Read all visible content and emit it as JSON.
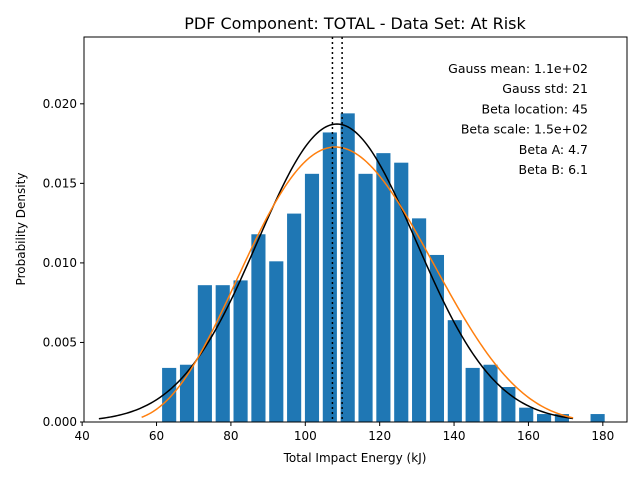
{
  "chart_data": {
    "type": "bar",
    "title": "PDF Component: TOTAL - Data Set: At Risk",
    "xlabel": "Total Impact Energy (kJ)",
    "ylabel": "Probability Density",
    "xlim": [
      40.5,
      186.5
    ],
    "ylim": [
      0,
      0.0242
    ],
    "xticks": [
      40,
      60,
      80,
      100,
      120,
      140,
      160,
      180
    ],
    "yticks": [
      0.0,
      0.005,
      0.01,
      0.015,
      0.02
    ],
    "ytick_labels": [
      "0.000",
      "0.005",
      "0.010",
      "0.015",
      "0.020"
    ],
    "grid": false,
    "bar_width": 3.8,
    "histogram": {
      "x": [
        63.4,
        68.2,
        73.0,
        77.8,
        82.6,
        87.4,
        92.2,
        97.0,
        101.8,
        106.6,
        111.4,
        116.2,
        121.0,
        125.8,
        130.6,
        135.4,
        140.2,
        145.0,
        149.8,
        154.6,
        159.4,
        164.2,
        169.0,
        178.6
      ],
      "values": [
        0.0034,
        0.0036,
        0.0086,
        0.0086,
        0.0089,
        0.0118,
        0.0101,
        0.0131,
        0.0156,
        0.0182,
        0.0194,
        0.0156,
        0.0169,
        0.0163,
        0.0128,
        0.0105,
        0.0064,
        0.0034,
        0.0036,
        0.0022,
        0.0009,
        0.0005,
        0.0005,
        0.0005
      ]
    },
    "gauss": {
      "mean": 108.5,
      "std": 21.3,
      "xrange": [
        44.5,
        172
      ]
    },
    "beta": {
      "loc": 45,
      "scale": 150,
      "a": 4.7,
      "b": 6.1,
      "xrange": [
        56,
        172
      ]
    },
    "vlines": [
      107.3,
      109.9
    ],
    "annotations": [
      "Gauss mean: 1.1e+02",
      "Gauss std: 21",
      "Beta location: 45",
      "Beta scale: 1.5e+02",
      "Beta A: 4.7",
      "Beta B: 6.1"
    ],
    "colors": {
      "bars": "#1f77b4",
      "gauss": "#000000",
      "beta": "#ff7f0e",
      "vlines": "#000000"
    }
  }
}
